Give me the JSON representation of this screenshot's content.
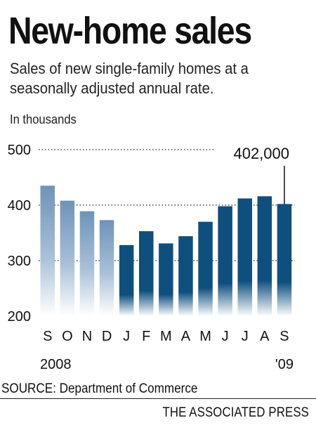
{
  "header": {
    "title": "New-home sales",
    "subtitle": "Sales of new single-family homes at a seasonally adjusted annual rate.",
    "unit": "In thousands"
  },
  "footer": {
    "source": "SOURCE: Department of Commerce",
    "credit": "THE ASSOCIATED PRESS"
  },
  "colors": {
    "bar_2008": "#6f93b8",
    "bar_2009": "#0e4f7e"
  },
  "chart_data": {
    "type": "bar",
    "title": "New-home sales",
    "ylabel": "In thousands",
    "xlabel": "",
    "categories": [
      "S",
      "O",
      "N",
      "D",
      "J",
      "F",
      "M",
      "A",
      "M",
      "J",
      "J",
      "A",
      "S"
    ],
    "year_labels": [
      "2008",
      "'09"
    ],
    "values": [
      435,
      408,
      389,
      373,
      328,
      353,
      331,
      344,
      370,
      398,
      412,
      416,
      402
    ],
    "ylim": [
      200,
      500
    ],
    "yticks": [
      "200",
      "300",
      "400",
      "500"
    ],
    "annotation": "402,000",
    "grid": "dotted lines at 300, 400, 500"
  }
}
